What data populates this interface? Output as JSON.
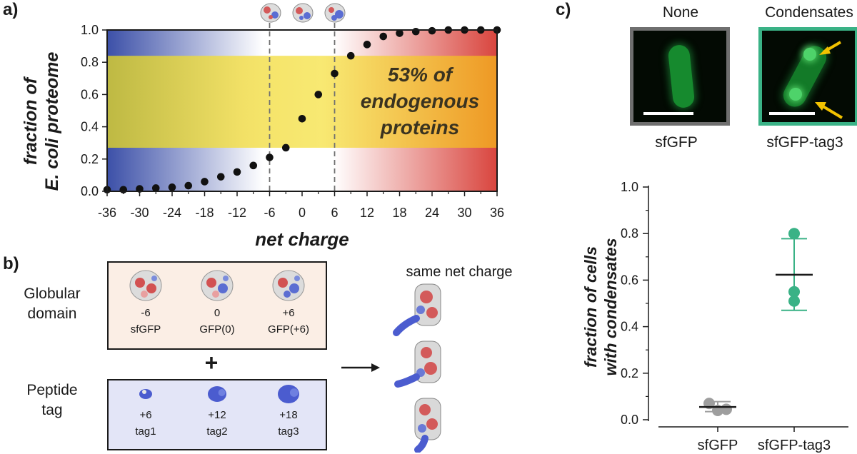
{
  "panel_a": {
    "label": "a)",
    "annotation": [
      "53% of",
      "endogenous",
      "proteins"
    ],
    "chart_data": {
      "type": "scatter",
      "title": "",
      "xlabel": "net charge",
      "ylabel_lines": [
        "fraction of",
        "E. coli proteome"
      ],
      "xlim": [
        -36,
        36
      ],
      "ylim": [
        0,
        1
      ],
      "x_ticks": [
        "-36",
        "-30",
        "-24",
        "-18",
        "-12",
        "-6",
        "0",
        "6",
        "12",
        "18",
        "24",
        "30",
        "36"
      ],
      "y_ticks": [
        "0.0",
        "0.2",
        "0.4",
        "0.6",
        "0.8",
        "1.0"
      ],
      "highlight_band": [
        0.27,
        0.84
      ],
      "reference_lines_x": [
        -6,
        6
      ],
      "x": [
        -36,
        -33,
        -30,
        -27,
        -24,
        -21,
        -18,
        -15,
        -12,
        -9,
        -6,
        -3,
        0,
        3,
        6,
        9,
        12,
        15,
        18,
        21,
        24,
        27,
        30,
        33,
        36
      ],
      "y": [
        0.01,
        0.01,
        0.015,
        0.02,
        0.025,
        0.035,
        0.06,
        0.09,
        0.12,
        0.16,
        0.21,
        0.27,
        0.45,
        0.6,
        0.73,
        0.84,
        0.91,
        0.96,
        0.98,
        0.99,
        0.995,
        1.0,
        1.0,
        1.0,
        1.0
      ]
    }
  },
  "panel_b": {
    "label": "b)",
    "globular": {
      "title_lines": [
        "Globular",
        "domain"
      ],
      "items": [
        {
          "charge": "-6",
          "name": "sfGFP"
        },
        {
          "charge": "0",
          "name": "GFP(0)"
        },
        {
          "charge": "+6",
          "name": "GFP(+6)"
        }
      ]
    },
    "plus": "+",
    "tag": {
      "title_lines": [
        "Peptide",
        "tag"
      ],
      "items": [
        {
          "charge": "+6",
          "name": "tag1"
        },
        {
          "charge": "+12",
          "name": "tag2"
        },
        {
          "charge": "+18",
          "name": "tag3"
        }
      ]
    },
    "result_title": "same net charge"
  },
  "panel_c": {
    "label": "c)",
    "micrographs": [
      {
        "header": "None",
        "caption": "sfGFP",
        "border_color": "#6f6f6f"
      },
      {
        "header": "Condensates",
        "caption": "sfGFP-tag3",
        "border_color": "#3ab286"
      }
    ],
    "chart_data": {
      "type": "scatter",
      "title": "",
      "xlabel": "",
      "ylabel_lines": [
        "fraction of cells",
        "with condensates"
      ],
      "ylim": [
        0,
        1
      ],
      "y_ticks": [
        "0.0",
        "0.2",
        "0.4",
        "0.6",
        "0.8",
        "1.0"
      ],
      "categories": [
        "sfGFP",
        "sfGFP-tag3"
      ],
      "series": [
        {
          "name": "sfGFP",
          "color": "#9e9e9e",
          "mean_color": "#1a1a1a",
          "points": [
            0.07,
            0.045,
            0.04
          ],
          "mean": 0.055,
          "err_low": 0.035,
          "err_high": 0.078
        },
        {
          "name": "sfGFP-tag3",
          "color": "#3ab286",
          "mean_color": "#1a1a1a",
          "points": [
            0.8,
            0.55,
            0.51
          ],
          "mean": 0.623,
          "err_low": 0.47,
          "err_high": 0.778
        }
      ]
    }
  },
  "colors": {
    "arrow": "#f2c200",
    "green_cell": "#1fb24a"
  }
}
